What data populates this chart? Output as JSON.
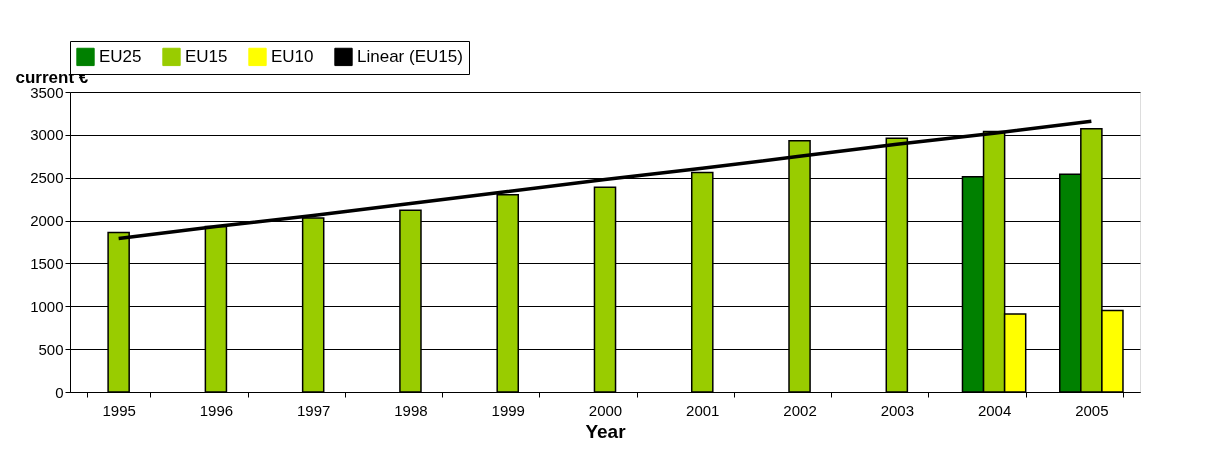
{
  "chart_data": {
    "type": "bar",
    "xlabel": "Year",
    "ylabel": "current €",
    "categories": [
      "1995",
      "1996",
      "1997",
      "1998",
      "1999",
      "2000",
      "2001",
      "2002",
      "2003",
      "2004",
      "2005"
    ],
    "series": [
      {
        "name": "EU25",
        "color": "#008000",
        "values": [
          null,
          null,
          null,
          null,
          null,
          null,
          null,
          null,
          null,
          2510,
          2540
        ]
      },
      {
        "name": "EU15",
        "color": "#99cc00",
        "values": [
          1860,
          1930,
          2030,
          2120,
          2300,
          2390,
          2560,
          2930,
          2960,
          3040,
          3070
        ]
      },
      {
        "name": "EU10",
        "color": "#ffff00",
        "values": [
          null,
          null,
          null,
          null,
          null,
          null,
          null,
          null,
          null,
          910,
          950
        ]
      },
      {
        "name": "Linear (EU15)",
        "type": "line",
        "color": "#000000",
        "values": [
          1790,
          1930,
          2060,
          2200,
          2340,
          2480,
          2610,
          2750,
          2890,
          3020,
          3160
        ]
      }
    ],
    "ylim": [
      0,
      3500
    ],
    "yticks": [
      0,
      500,
      1000,
      1500,
      2000,
      2500,
      3000,
      3500
    ],
    "grid": "y",
    "legend": "top"
  }
}
